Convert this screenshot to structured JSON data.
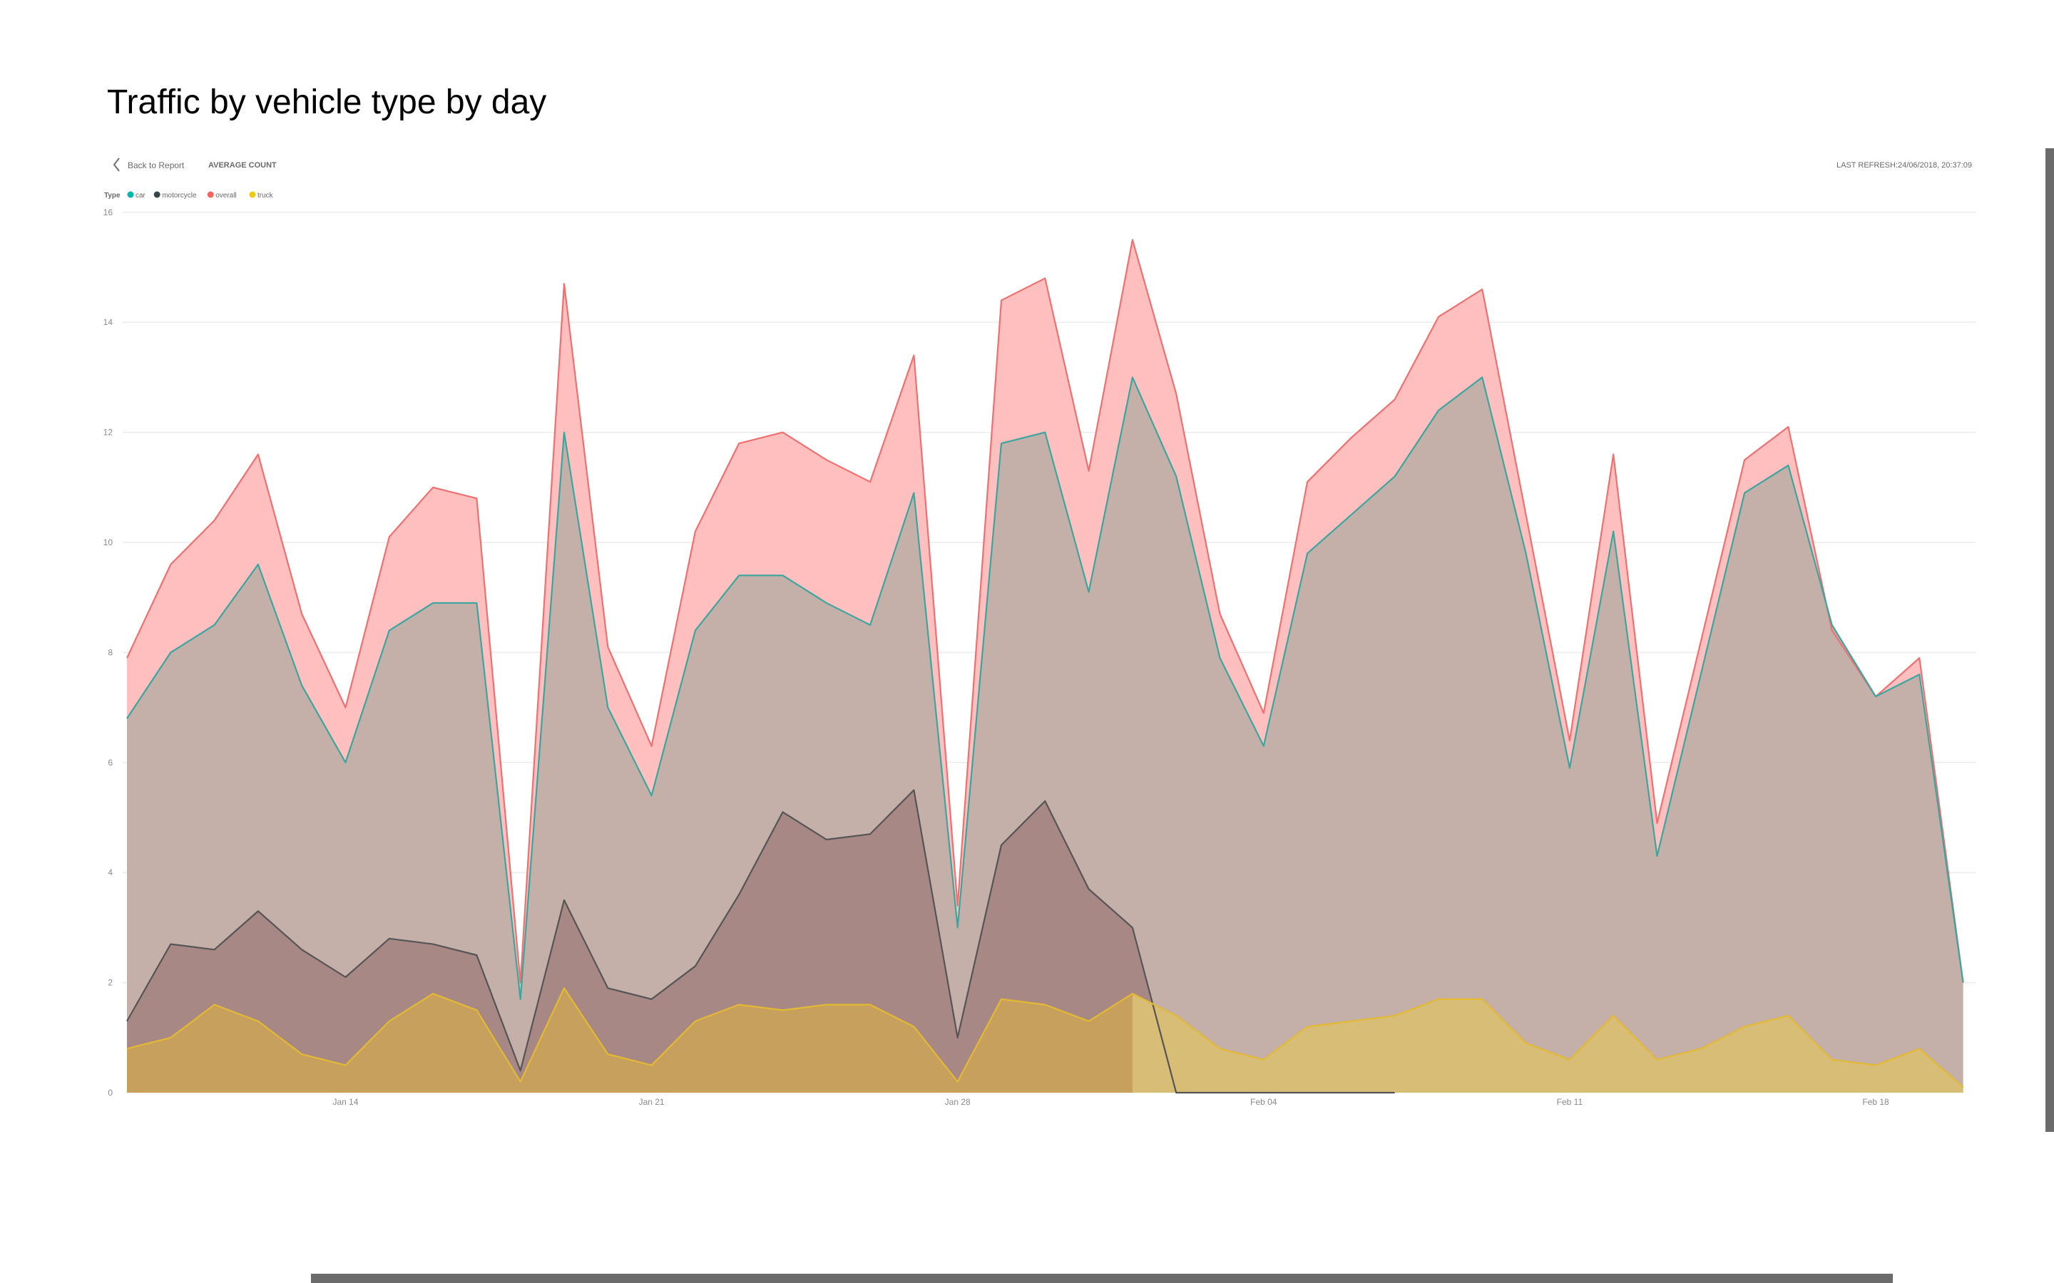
{
  "page": {
    "title": "Traffic by vehicle type by day"
  },
  "header": {
    "back_label": "Back to Report",
    "measure_label": "AVERAGE COUNT",
    "refresh_label": "LAST REFRESH:24/06/2018, 20:37:09"
  },
  "legend": {
    "title": "Type",
    "items": [
      {
        "name": "car",
        "color": "#01b8aa"
      },
      {
        "name": "motorcycle",
        "color": "#374649"
      },
      {
        "name": "overall",
        "color": "#fd625e"
      },
      {
        "name": "truck",
        "color": "#f2c80f"
      }
    ]
  },
  "icons": {
    "back": "chevron-left-icon",
    "legend_marker": "circle-icon"
  },
  "colors": {
    "car_line": "#3aa6a0",
    "motorcycle_line": "#555555",
    "overall_line": "#f07070",
    "truck_line": "#e3b934",
    "overall_fill": "#ffbfbf",
    "car_fill": "#c4b0a9",
    "motorcycle_fill": "#a88884",
    "truck_fill_early": "#c8a05d",
    "truck_fill_late": "#d7bd76"
  },
  "chart_data": {
    "type": "area",
    "title": "",
    "xlabel": "",
    "ylabel": "",
    "x_start": "2018-01-09",
    "x_tick_labels": [
      "Jan 14",
      "Jan 21",
      "Jan 28",
      "Feb 04",
      "Feb 11",
      "Feb 18"
    ],
    "x_tick_dates": [
      "2018-01-14",
      "2018-01-21",
      "2018-01-28",
      "2018-02-04",
      "2018-02-11",
      "2018-02-18"
    ],
    "ylim": [
      0,
      16
    ],
    "y_ticks": [
      0,
      2,
      4,
      6,
      8,
      10,
      12,
      14,
      16
    ],
    "grid": true,
    "legend_position": "top-left",
    "series": [
      {
        "name": "overall",
        "values": [
          7.9,
          9.6,
          10.4,
          11.6,
          8.7,
          7.0,
          10.1,
          11.0,
          10.8,
          2.0,
          14.7,
          8.1,
          6.3,
          10.2,
          11.8,
          12.0,
          11.5,
          11.1,
          13.4,
          3.4,
          14.4,
          14.8,
          11.3,
          15.5,
          12.7,
          8.7,
          6.9,
          11.1,
          11.9,
          12.6,
          14.1,
          14.6,
          10.5,
          6.4,
          11.6,
          4.9,
          8.2,
          11.5,
          12.1,
          8.4,
          7.2,
          7.9,
          2.0
        ]
      },
      {
        "name": "car",
        "values": [
          6.8,
          8.0,
          8.5,
          9.6,
          7.4,
          6.0,
          8.4,
          8.9,
          8.9,
          1.7,
          12.0,
          7.0,
          5.4,
          8.4,
          9.4,
          9.4,
          8.9,
          8.5,
          10.9,
          3.0,
          11.8,
          12.0,
          9.1,
          13.0,
          11.2,
          7.9,
          6.3,
          9.8,
          10.5,
          11.2,
          12.4,
          13.0,
          9.8,
          5.9,
          10.2,
          4.3,
          7.6,
          10.9,
          11.4,
          8.5,
          7.2,
          7.6,
          2.0
        ]
      },
      {
        "name": "motorcycle",
        "values": [
          1.3,
          2.7,
          2.6,
          3.3,
          2.6,
          2.1,
          2.8,
          2.7,
          2.5,
          0.4,
          3.5,
          1.9,
          1.7,
          2.3,
          3.6,
          5.1,
          4.6,
          4.7,
          5.5,
          1.0,
          4.5,
          5.3,
          3.7,
          3.0,
          0.0,
          0.0,
          0.0,
          0.0,
          0.0,
          0.0
        ]
      },
      {
        "name": "truck",
        "values": [
          0.8,
          1.0,
          1.6,
          1.3,
          0.7,
          0.5,
          1.3,
          1.8,
          1.5,
          0.2,
          1.9,
          0.7,
          0.5,
          1.3,
          1.6,
          1.5,
          1.6,
          1.6,
          1.2,
          0.2,
          1.7,
          1.6,
          1.3,
          1.8,
          1.4,
          0.8,
          0.6,
          1.2,
          1.3,
          1.4,
          1.7,
          1.7,
          0.9,
          0.6,
          1.4,
          0.6,
          0.8,
          1.2,
          1.4,
          0.6,
          0.5,
          0.8,
          0.1
        ]
      }
    ]
  }
}
